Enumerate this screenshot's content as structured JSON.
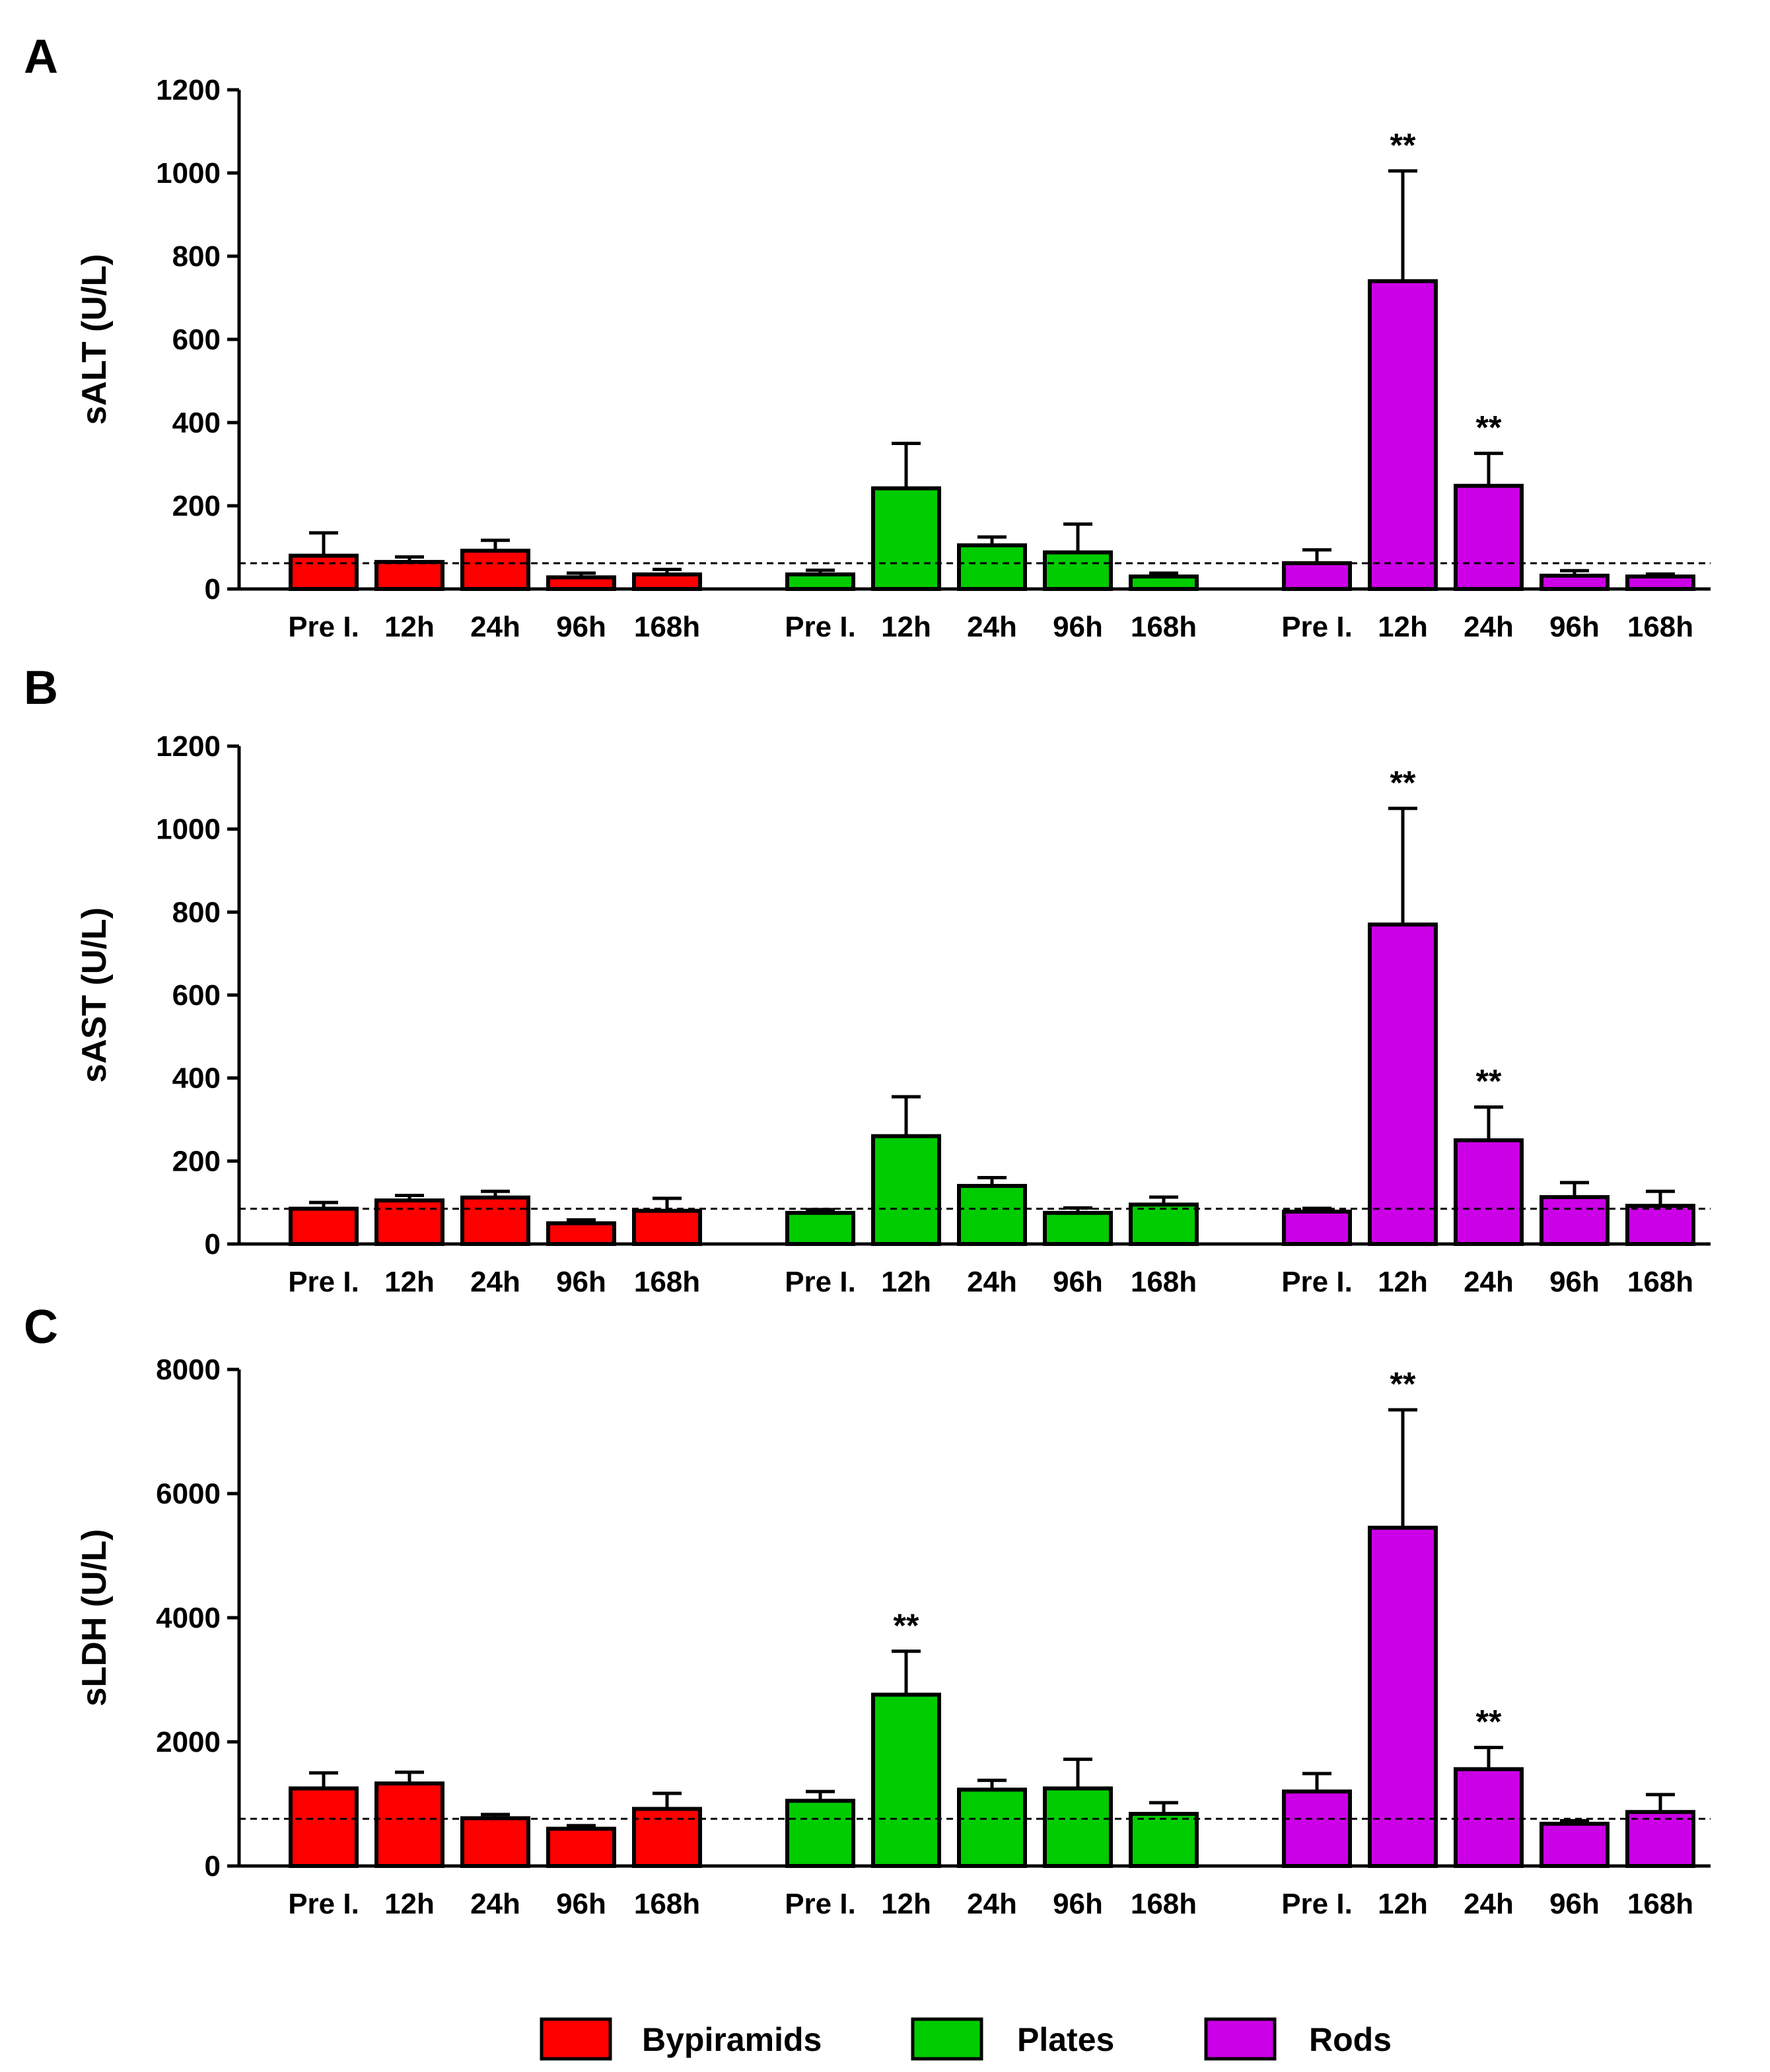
{
  "chart_data": [
    {
      "type": "bar",
      "panel": "A",
      "ylabel": "sALT (U/L)",
      "ylim": [
        0,
        1200
      ],
      "yticks": [
        0,
        200,
        400,
        600,
        800,
        1000,
        1200
      ],
      "ytick_labels": [
        "0",
        "200",
        "400",
        "600",
        "800",
        "1000",
        "1200"
      ],
      "categories": [
        "Pre I.",
        "12h",
        "24h",
        "96h",
        "168h"
      ],
      "reference_line": 62,
      "series": [
        {
          "name": "Bypiramids",
          "values": [
            80,
            65,
            92,
            28,
            35
          ],
          "errors": [
            55,
            12,
            25,
            10,
            12
          ],
          "stars": [
            "",
            "",
            "",
            "",
            ""
          ]
        },
        {
          "name": "Plates",
          "values": [
            35,
            242,
            105,
            88,
            30
          ],
          "errors": [
            10,
            108,
            20,
            68,
            8
          ],
          "stars": [
            "",
            "",
            "",
            "",
            ""
          ]
        },
        {
          "name": "Rods",
          "values": [
            62,
            740,
            248,
            32,
            30
          ],
          "errors": [
            32,
            265,
            78,
            12,
            6
          ],
          "stars": [
            "",
            "**",
            "**",
            "",
            ""
          ]
        }
      ]
    },
    {
      "type": "bar",
      "panel": "B",
      "ylabel": "sAST (U/L)",
      "ylim": [
        0,
        1200
      ],
      "yticks": [
        0,
        200,
        400,
        600,
        800,
        1000,
        1200
      ],
      "ytick_labels": [
        "0",
        "200",
        "400",
        "600",
        "800",
        "1000",
        "1200"
      ],
      "categories": [
        "Pre I.",
        "12h",
        "24h",
        "96h",
        "168h"
      ],
      "reference_line": 85,
      "series": [
        {
          "name": "Bypiramids",
          "values": [
            85,
            105,
            112,
            50,
            80
          ],
          "errors": [
            15,
            12,
            15,
            8,
            30
          ],
          "stars": [
            "",
            "",
            "",
            "",
            ""
          ]
        },
        {
          "name": "Plates",
          "values": [
            75,
            260,
            140,
            75,
            95
          ],
          "errors": [
            8,
            95,
            20,
            12,
            18
          ],
          "stars": [
            "",
            "",
            "",
            "",
            ""
          ]
        },
        {
          "name": "Rods",
          "values": [
            78,
            770,
            250,
            113,
            92
          ],
          "errors": [
            8,
            280,
            80,
            35,
            35
          ],
          "stars": [
            "",
            "**",
            "**",
            "",
            ""
          ]
        }
      ]
    },
    {
      "type": "bar",
      "panel": "C",
      "ylabel": "sLDH (U/L)",
      "ylim": [
        0,
        8000
      ],
      "yticks": [
        0,
        2000,
        4000,
        6000,
        8000
      ],
      "ytick_labels": [
        "0",
        "2000",
        "4000",
        "6000",
        "8000"
      ],
      "categories": [
        "Pre I.",
        "12h",
        "24h",
        "96h",
        "168h"
      ],
      "reference_line": 760,
      "series": [
        {
          "name": "Bypiramids",
          "values": [
            1250,
            1330,
            770,
            600,
            920
          ],
          "errors": [
            250,
            180,
            60,
            50,
            250
          ],
          "stars": [
            "",
            "",
            "",
            "",
            ""
          ]
        },
        {
          "name": "Plates",
          "values": [
            1050,
            2760,
            1230,
            1250,
            840
          ],
          "errors": [
            150,
            700,
            150,
            470,
            180
          ],
          "stars": [
            "",
            "**",
            "",
            "",
            ""
          ]
        },
        {
          "name": "Rods",
          "values": [
            1200,
            5450,
            1560,
            680,
            870
          ],
          "errors": [
            290,
            1900,
            350,
            50,
            280
          ],
          "stars": [
            "",
            "**",
            "**",
            "",
            ""
          ]
        }
      ]
    }
  ],
  "legend": [
    {
      "label": "Bypiramids",
      "color": "#ff0000"
    },
    {
      "label": "Plates",
      "color": "#00cc00"
    },
    {
      "label": "Rods",
      "color": "#cc00e6"
    }
  ],
  "colors": {
    "Bypiramids": "#ff0000",
    "Plates": "#00cc00",
    "Rods": "#cc00e6"
  }
}
